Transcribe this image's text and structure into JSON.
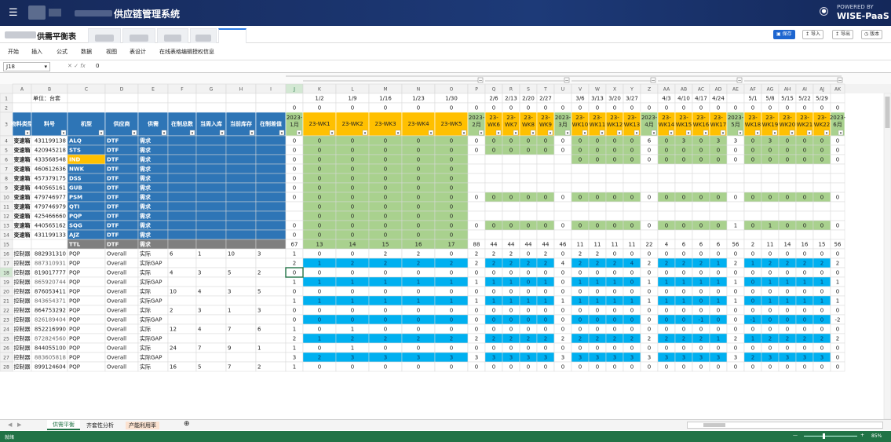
{
  "header": {
    "menu_icon": "hamburger-icon",
    "title": "供应链管理系统",
    "powered_by": "POWERED BY",
    "brand": "WISE-PaaS"
  },
  "tabs": {
    "active": "供需平衡表"
  },
  "toolbar": {
    "save": "保存",
    "import": "导入",
    "export": "导出",
    "version": "版本"
  },
  "ribbon": [
    "开始",
    "插入",
    "公式",
    "数据",
    "视图",
    "表设计",
    "在线表格编辑授权信息"
  ],
  "formula_bar": {
    "cell_ref": "J18",
    "value": "0"
  },
  "sheet": {
    "col_letters": [
      "A",
      "B",
      "C",
      "D",
      "E",
      "F",
      "G",
      "H",
      "I",
      "J",
      "K",
      "L",
      "M",
      "N",
      "O",
      "P",
      "Q",
      "R",
      "S",
      "T",
      "U",
      "V",
      "W",
      "X",
      "Y",
      "Z",
      "AA",
      "AB",
      "AC",
      "AD",
      "AE",
      "AF",
      "AG",
      "AH",
      "AI",
      "AJ",
      "AK"
    ],
    "unit_label": "单位：台套",
    "dates": [
      "",
      "",
      "",
      "",
      "",
      "",
      "",
      "",
      "",
      "",
      "1/2",
      "1/9",
      "1/16",
      "1/23",
      "1/30",
      "",
      "2/6",
      "2/13",
      "2/20",
      "2/27",
      "",
      "3/6",
      "3/13",
      "3/20",
      "3/27",
      "",
      "4/3",
      "4/10",
      "4/17",
      "4/24",
      "",
      "5/1",
      "5/8",
      "5/15",
      "5/22",
      "5/29",
      ""
    ],
    "row2": [
      "",
      "",
      "",
      "",
      "",
      "",
      "",
      "",
      "",
      "0",
      "0",
      "0",
      "0",
      "0",
      "0",
      "0",
      "0",
      "0",
      "0",
      "0",
      "0",
      "0",
      "0",
      "0",
      "0",
      "0",
      "0",
      "0",
      "0",
      "0",
      "0",
      "0",
      "0",
      "0",
      "0",
      "0",
      "0"
    ],
    "headers": [
      "物料类型",
      "料号",
      "机型",
      "供应商",
      "供需",
      "在制总数",
      "当周入库",
      "当前库存",
      "在制差值",
      "2023-1月",
      "23-WK1",
      "23-WK2",
      "23-WK3",
      "23-WK4",
      "23-WK5",
      "2023-2月",
      "23-WK6",
      "23-WK7",
      "23-WK8",
      "23-WK9",
      "2023-3月",
      "23-WK10",
      "23-WK11",
      "23-WK12",
      "23-WK13",
      "2023-4月",
      "23-WK14",
      "23-WK15",
      "23-WK16",
      "23-WK17",
      "2023-5月",
      "23-WK18",
      "23-WK19",
      "23-WK20",
      "23-WK21",
      "23-WK22",
      "2023-6月"
    ],
    "rows": [
      {
        "n": "4",
        "t": "变速箱",
        "pn": "431199138",
        "m": "ALQ",
        "s": "DTF",
        "d": "需求",
        "v": "0|0|0|0|0|0|0|0|0|0|0|0|0|0|0|0|6|0|3|0|3|3|0|3|0|0|0|0"
      },
      {
        "n": "5",
        "t": "变速箱",
        "pn": "420945218",
        "m": "STS",
        "s": "DTF",
        "d": "需求",
        "v": "0|0|0|0|0|0|0|0|0|0|0|0|0|0|0|0|0|0|0|0|0|0|0|0|0|0|0|0"
      },
      {
        "n": "6",
        "t": "变速箱",
        "pn": "433568548",
        "m": "IND",
        "s": "DTF",
        "d": "需求",
        "v": "0|0|0|0|0|0|||||||0|0|0|0|0|0|0|0|0|0|0|0|0|0|0|0|0"
      },
      {
        "n": "7",
        "t": "变速箱",
        "pn": "460612636",
        "m": "NWK",
        "s": "DTF",
        "d": "需求",
        "v": "0|0|0|0|0|0||||||||||||||||||||||"
      },
      {
        "n": "8",
        "t": "变速箱",
        "pn": "457379175",
        "m": "DSS",
        "s": "DTF",
        "d": "需求",
        "v": "0|0|0|0|0|0||||||||||||||||||||||"
      },
      {
        "n": "9",
        "t": "变速箱",
        "pn": "440565161",
        "m": "GUB",
        "s": "DTF",
        "d": "需求",
        "v": "0|0|0|0|0|0||||||||||||||||||||||"
      },
      {
        "n": "10",
        "t": "变速箱",
        "pn": "479746977",
        "m": "PSM",
        "s": "DTF",
        "d": "需求",
        "v": "0|0|0|0|0|0|0|0|0|0|0|0|0|0|0|0|0|0|0|0|0|0|0|0|0|0|0|0"
      },
      {
        "n": "11",
        "t": "变速箱",
        "pn": "479746979",
        "m": "QTI",
        "s": "DTF",
        "d": "需求",
        "v": "|0|0|0|0|0||||||||||||||||||||||"
      },
      {
        "n": "12",
        "t": "变速箱",
        "pn": "425466660",
        "m": "PQP",
        "s": "DTF",
        "d": "需求",
        "v": "|0|0|0|0|0||||||||||||||||||||||"
      },
      {
        "n": "13",
        "t": "变速箱",
        "pn": "440565162",
        "m": "SQG",
        "s": "DTF",
        "d": "需求",
        "v": "0|0|0|0|0|0|0|0|0|0|0|0|0|0|0|0|0|0|0|0|0|1|0|1|0|0|0|0"
      },
      {
        "n": "14",
        "t": "变速箱",
        "pn": "431199133",
        "m": "AJZ",
        "s": "DTF",
        "d": "需求",
        "v": "0|0|0|0|0|0||||||||||||||||||||||"
      },
      {
        "n": "15",
        "t": "",
        "pn": "",
        "m": "TTL",
        "s": "DTF",
        "d": "需求",
        "v": "67|13|14|15|16|17|88|44|44|44|44|46|11|11|11|11|22|4|6|6|6|56|2|11|14|16|15|56"
      },
      {
        "n": "16",
        "t": "控制器",
        "pn": "882931310",
        "m": "PQP",
        "s": "Overall",
        "d": "实际",
        "f": "6|1|10|3",
        "v": "1|0|0|2|2|0|2|2|2|0|2|0|2|2|0|0|0|0|0|0|0|0|0|0|0|0|0|0"
      },
      {
        "n": "17",
        "t": "控制器",
        "pn": "887310931",
        "m": "PQP",
        "s": "Overall",
        "d": "实际GAP",
        "v": "2|1|2|2|2|2|2|2|2|2|2|4|2|2|2|4|2|2|2|2|1|2|1|2|2|2|2|2"
      },
      {
        "n": "18",
        "t": "控制器",
        "pn": "819017777",
        "m": "PQP",
        "s": "Overall",
        "d": "实际",
        "f": "4|3|5|2",
        "v": "0|0|0|0|0|0|0|0|0|0|0|0|0|0|0|0|0|0|0|0|0|0|0|0|0|0|0|0"
      },
      {
        "n": "19",
        "t": "控制器",
        "pn": "865920744",
        "m": "PQP",
        "s": "Overall",
        "d": "实际GAP",
        "v": "1|1|1|1|1|1|1|1|1|0|1|0|1|1|1|0|1|1|1|1|1|1|0|1|1|1|1|1"
      },
      {
        "n": "20",
        "t": "控制器",
        "pn": "876053411",
        "m": "PQP",
        "s": "Overall",
        "d": "实际",
        "f": "10|4|3|5",
        "v": "0|0|0|0|0|0|0|0|0|0|0|0|0|0|0|0|0|0|0|0|0|0|0|0|0|0|0|0"
      },
      {
        "n": "21",
        "t": "控制器",
        "pn": "843654371",
        "m": "PQP",
        "s": "Overall",
        "d": "实际GAP",
        "v": "1|1|1|1|1|1|1|1|1|1|1|1|1|1|1|1|1|1|1|0|1|1|0|1|1|1|1|1"
      },
      {
        "n": "22",
        "t": "控制器",
        "pn": "864753292",
        "m": "PQP",
        "s": "Overall",
        "d": "实际",
        "f": "2|3|1|3",
        "v": "0|0|0|0|0|0|0|0|0|0|0|0|0|0|0|0|0|0|0|0|0|0|0|0|0|0|0|0"
      },
      {
        "n": "23",
        "t": "控制器",
        "pn": "826189404",
        "m": "PQP",
        "s": "Overall",
        "d": "实际GAP",
        "v": "0|0|0|0|0|0|0|0|0|0|0|0|0|0|0|0|0|0|0|-1|0|0|-1|0|0|0|0|-2"
      },
      {
        "n": "24",
        "t": "控制器",
        "pn": "852216990",
        "m": "PQP",
        "s": "Overall",
        "d": "实际",
        "f": "12|4|7|6",
        "v": "1|0|1|0|0|0|0|0|0|0|0|0|0|0|0|0|0|0|0|0|0|0|0|0|0|0|0|0"
      },
      {
        "n": "25",
        "t": "控制器",
        "pn": "872824560",
        "m": "PQP",
        "s": "Overall",
        "d": "实际GAP",
        "v": "2|1|2|2|2|2|2|2|2|2|2|2|2|2|2|2|2|2|2|2|1|2|1|2|2|2|2|2"
      },
      {
        "n": "26",
        "t": "控制器",
        "pn": "844055100",
        "m": "PQP",
        "s": "Overall",
        "d": "实际",
        "f": "24|7|9|1",
        "v": "1|0|1|0|0|0|0|0|0|0|0|0|0|0|0|0|0|0|0|0|0|0|0|0|0|0|0|0"
      },
      {
        "n": "27",
        "t": "控制器",
        "pn": "883605818",
        "m": "PQP",
        "s": "Overall",
        "d": "实际GAP",
        "v": "3|2|3|3|3|3|3|3|3|3|3|3|3|3|3|3|3|3|3|3|3|3|2|3|3|3|3|0"
      },
      {
        "n": "28",
        "t": "控制器",
        "pn": "899124604",
        "m": "PQP",
        "s": "Overall",
        "d": "实际",
        "f": "16|5|7|2",
        "v": "1|0|0|0|0|0|0|0|0|0|0|0|0|0|0|0|0|0|0|0|0|0|0|0|0|0|0|0"
      }
    ]
  },
  "sheet_tabs": [
    "供需平衡",
    "齐套性分析",
    "产能利用率"
  ],
  "status": {
    "mode": "就绪",
    "zoom": "85%"
  },
  "colors": {
    "blue": "#2e75b6",
    "green": "#a9d18e",
    "yellow": "#ffc000",
    "cyan": "#00b0f0",
    "grey": "#7f7f7f"
  }
}
